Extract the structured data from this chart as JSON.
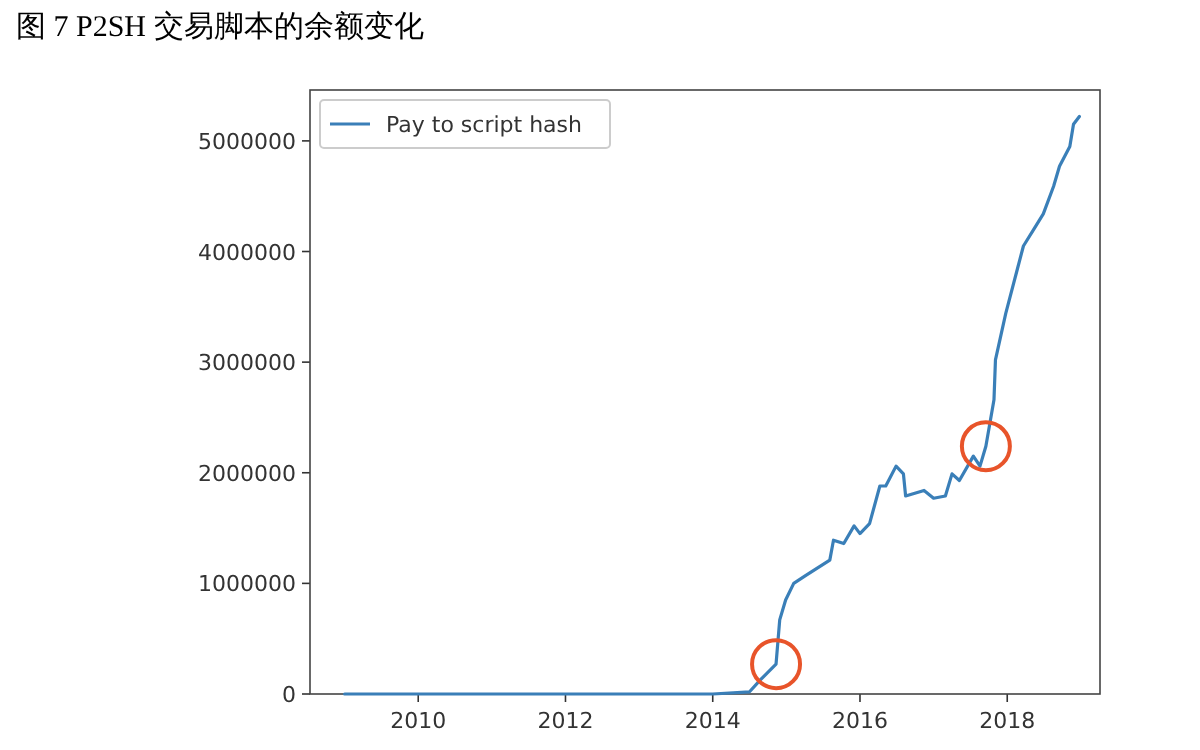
{
  "chart_data": {
    "type": "line",
    "title": "图 7 P2SH 交易脚本的余额变化",
    "legend": "top left",
    "xlim": [
      2008.53,
      2019.26
    ],
    "ylim": [
      0,
      5460000
    ],
    "xticks": [
      2010,
      2012,
      2014,
      2016,
      2018
    ],
    "yticks": [
      0,
      1000000,
      2000000,
      3000000,
      4000000,
      5000000
    ],
    "series": [
      {
        "name": "Pay to script hash",
        "color": "#3a7fb8",
        "x": [
          2009.0,
          2011.0,
          2013.0,
          2014.0,
          2014.5,
          2014.65,
          2014.86,
          2014.91,
          2014.99,
          2015.1,
          2015.26,
          2015.59,
          2015.64,
          2015.78,
          2015.92,
          2016.0,
          2016.13,
          2016.27,
          2016.35,
          2016.49,
          2016.59,
          2016.62,
          2016.87,
          2017.0,
          2017.16,
          2017.25,
          2017.35,
          2017.54,
          2017.63,
          2017.71,
          2017.82,
          2017.84,
          2017.98,
          2018.22,
          2018.36,
          2018.49,
          2018.63,
          2018.71,
          2018.85,
          2018.9,
          2018.98
        ],
        "values": [
          0,
          0,
          0,
          0,
          20000,
          130000,
          270000,
          670000,
          850000,
          1000000,
          1070000,
          1210000,
          1390000,
          1360000,
          1520000,
          1450000,
          1540000,
          1880000,
          1880000,
          2060000,
          1990000,
          1790000,
          1840000,
          1770000,
          1790000,
          1990000,
          1930000,
          2150000,
          2060000,
          2240000,
          2660000,
          3020000,
          3440000,
          4050000,
          4200000,
          4340000,
          4590000,
          4770000,
          4950000,
          5150000,
          5220000
        ]
      }
    ]
  }
}
